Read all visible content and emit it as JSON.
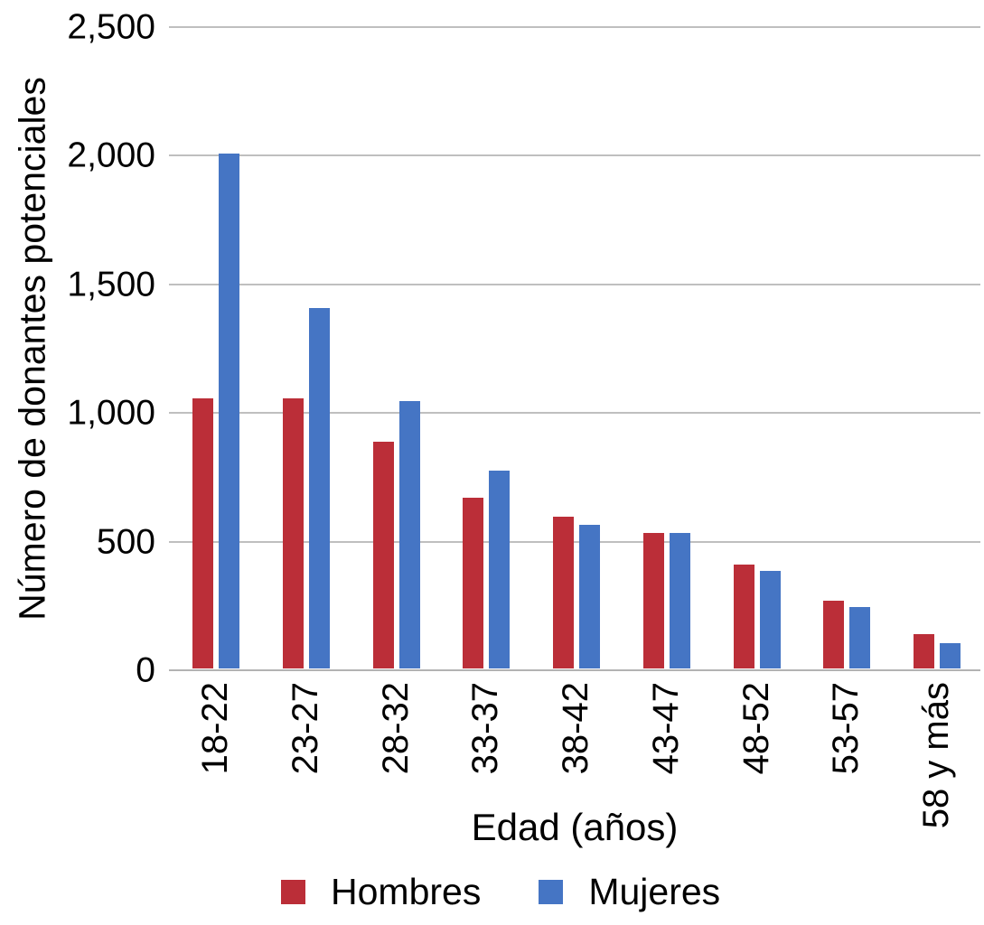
{
  "chart_data": {
    "type": "bar",
    "title": "",
    "categories": [
      "18-22",
      "23-27",
      "28-32",
      "33-37",
      "38-42",
      "43-47",
      "48-52",
      "53-57",
      "58 y más"
    ],
    "series": [
      {
        "name": "Hombres",
        "color": "#bb2e38",
        "values": [
          1050,
          1050,
          880,
          665,
          590,
          525,
          405,
          265,
          135
        ]
      },
      {
        "name": "Mujeres",
        "color": "#4575c4",
        "values": [
          2000,
          1400,
          1040,
          770,
          560,
          525,
          380,
          240,
          100
        ]
      }
    ],
    "xlabel": "Edad (años)",
    "ylabel": "Número de donantes potenciales",
    "ylim": [
      0,
      2500
    ],
    "ytick_step": 500,
    "ytick_labels": [
      "0",
      "500",
      "1,000",
      "1,500",
      "2,000",
      "2,500"
    ],
    "grid": "horizontal",
    "legend_position": "bottom"
  },
  "colors": {
    "background": "#ffffff",
    "gridline": "#bfbfbf",
    "axis_line": "#b3b3b3",
    "text": "#000000"
  }
}
